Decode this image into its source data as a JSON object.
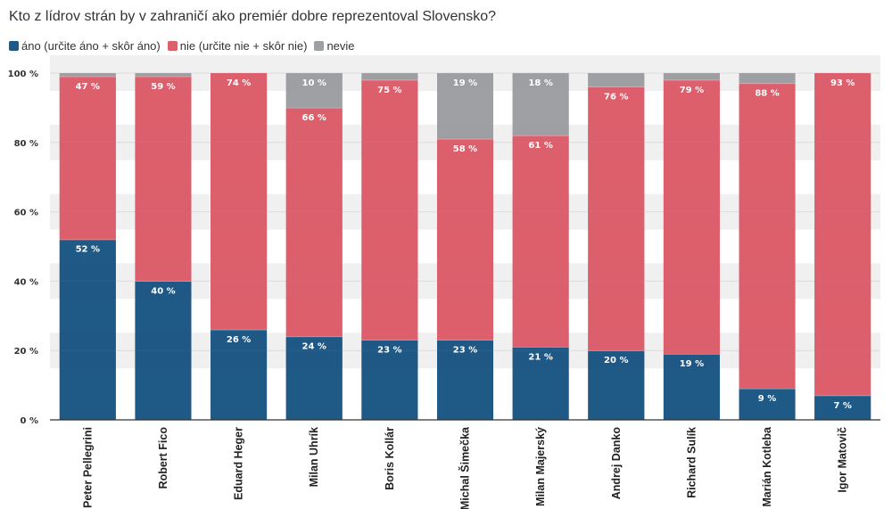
{
  "chart_data": {
    "type": "bar",
    "stacked": true,
    "title": "Kto z lídrov strán by v zahraničí ako premiér dobre reprezentoval Slovensko?",
    "categories": [
      "Peter Pellegrini",
      "Robert Fico",
      "Eduard Heger",
      "Milan Uhrík",
      "Boris Kollár",
      "Michal Šimečka",
      "Milan Majerský",
      "Andrej Danko",
      "Richard Sulík",
      "Marián Kotleba",
      "Igor Matovič"
    ],
    "series": [
      {
        "name": "áno (určite áno + skôr áno)",
        "color": "#1f5986",
        "values": [
          52,
          40,
          26,
          24,
          23,
          23,
          21,
          20,
          19,
          9,
          7
        ]
      },
      {
        "name": "nie (určite nie + skôr nie)",
        "color": "#dc5f6c",
        "values": [
          47,
          59,
          74,
          66,
          75,
          58,
          61,
          76,
          79,
          88,
          93
        ]
      },
      {
        "name": "nevie",
        "color": "#9e9fa3",
        "values": [
          1,
          1,
          0,
          10,
          2,
          19,
          18,
          4,
          2,
          3,
          0
        ]
      }
    ],
    "value_labels": [
      [
        "52 %",
        "40 %",
        "26 %",
        "24 %",
        "23 %",
        "23 %",
        "21 %",
        "20 %",
        "19 %",
        "9 %",
        "7 %"
      ],
      [
        "47 %",
        "59 %",
        "74 %",
        "66 %",
        "75 %",
        "58 %",
        "61 %",
        "76 %",
        "79 %",
        "88 %",
        "93 %"
      ],
      [
        "",
        "",
        "",
        "10 %",
        "",
        "19 %",
        "18 %",
        "",
        "",
        "",
        ""
      ]
    ],
    "y_ticks": [
      0,
      20,
      40,
      60,
      80,
      100
    ],
    "y_tick_labels": [
      "0 %",
      "20 %",
      "40 %",
      "60 %",
      "80 %",
      "100 %"
    ],
    "ylim": [
      0,
      100
    ],
    "grid": true,
    "legend_position": "top-left"
  }
}
